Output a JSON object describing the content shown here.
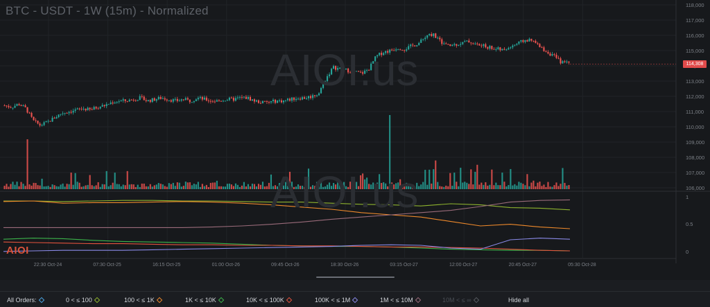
{
  "title": "BTC - USDT - 1W (15m) - Normalized",
  "watermark": "AIOI.us",
  "logo": "AIOI",
  "current_price": "114,308",
  "price_axis": [
    "118,000",
    "117,000",
    "116,000",
    "115,000",
    "114,000",
    "113,000",
    "112,000",
    "111,000",
    "110,000",
    "109,000",
    "108,000",
    "107,000",
    "106,000"
  ],
  "ratio_axis": [
    "1",
    "0.5",
    "0"
  ],
  "time_axis": [
    "22:30 Oct-24",
    "07:30 Oct-25",
    "16:15 Oct-25",
    "01:00 Oct-26",
    "09:45 Oct-26",
    "18:30 Oct-26",
    "03:15 Oct-27",
    "12:00 Oct-27",
    "20:45 Oct-27",
    "05:30 Oct-28"
  ],
  "filters": [
    {
      "label": "All Orders:",
      "color": "#4aa3e0",
      "enabled": true
    },
    {
      "label": "0 < ≤ 100",
      "color": "#8fb42e",
      "enabled": true
    },
    {
      "label": "100 < ≤ 1K",
      "color": "#f08a2b",
      "enabled": true
    },
    {
      "label": "1K < ≤ 10K",
      "color": "#3cb44b",
      "enabled": true
    },
    {
      "label": "10K < ≤ 100K",
      "color": "#e5533d",
      "enabled": true
    },
    {
      "label": "100K < ≤ 1M",
      "color": "#8a8ae8",
      "enabled": true
    },
    {
      "label": "1M < ≤ 10M",
      "color": "#9a6b7a",
      "enabled": true
    },
    {
      "label": "10M < ≤ ∞",
      "color": "#55595f",
      "enabled": false
    }
  ],
  "hide_all": "Hide all",
  "colors": {
    "up": "#26a69a",
    "down": "#ef5350",
    "bg": "#17191c"
  },
  "chart_data": {
    "type": "line",
    "price_series": [
      111.4,
      111.3,
      111.5,
      111.2,
      110.4,
      110.1,
      110.3,
      110.6,
      110.9,
      111.0,
      111.1,
      111.2,
      111.1,
      111.3,
      111.4,
      111.6,
      111.7,
      111.7,
      111.8,
      111.9,
      111.7,
      111.8,
      111.9,
      111.8,
      111.7,
      111.8,
      111.7,
      111.9,
      111.8,
      111.7,
      111.7,
      111.8,
      111.8,
      111.9,
      111.9,
      111.7,
      111.6,
      111.6,
      111.7,
      111.7,
      111.8,
      111.9,
      111.9,
      112.0,
      112.2,
      113.2,
      113.9,
      113.8,
      113.7,
      113.6,
      113.5,
      113.8,
      114.6,
      114.9,
      115.0,
      115.2,
      115.1,
      115.3,
      115.5,
      115.9,
      116.1,
      115.6,
      115.3,
      115.4,
      115.5,
      115.6,
      115.4,
      115.3,
      115.2,
      115.1,
      115.0,
      115.3,
      115.5,
      115.7,
      115.6,
      115.2,
      114.9,
      114.6,
      114.2,
      114.3
    ],
    "ylim": [
      106000,
      118000
    ],
    "ratio_series": [
      {
        "name": "0 < ≤ 100",
        "values": [
          0.95,
          0.95,
          0.94,
          0.95,
          0.96,
          0.96,
          0.95,
          0.95,
          0.94,
          0.93,
          0.93,
          0.91,
          0.89,
          0.88,
          0.86,
          0.9,
          0.88,
          0.83,
          0.82,
          0.79
        ]
      },
      {
        "name": "100 < ≤ 1K",
        "values": [
          0.94,
          0.95,
          0.91,
          0.92,
          0.92,
          0.93,
          0.94,
          0.93,
          0.91,
          0.88,
          0.84,
          0.8,
          0.74,
          0.7,
          0.66,
          0.58,
          0.5,
          0.53,
          0.48,
          0.45
        ]
      },
      {
        "name": "1K < ≤ 10K",
        "values": [
          0.26,
          0.28,
          0.27,
          0.24,
          0.22,
          0.21,
          0.2,
          0.19,
          0.17,
          0.15,
          0.14,
          0.13,
          0.13,
          0.12,
          0.1,
          0.08,
          0.07,
          0.06,
          0.06,
          0.05
        ]
      },
      {
        "name": "10K < ≤ 100K",
        "values": [
          0.21,
          0.2,
          0.19,
          0.18,
          0.18,
          0.17,
          0.16,
          0.16,
          0.15,
          0.15,
          0.14,
          0.14,
          0.13,
          0.12,
          0.12,
          0.11,
          0.1,
          0.08,
          0.06,
          0.05
        ]
      },
      {
        "name": "100K < ≤ 1M",
        "values": [
          0.04,
          0.05,
          0.06,
          0.06,
          0.06,
          0.07,
          0.08,
          0.09,
          0.1,
          0.11,
          0.12,
          0.13,
          0.15,
          0.16,
          0.15,
          0.1,
          0.08,
          0.25,
          0.28,
          0.26
        ]
      },
      {
        "name": "1M < ≤ 10M",
        "values": [
          0.47,
          0.47,
          0.47,
          0.47,
          0.47,
          0.47,
          0.47,
          0.48,
          0.5,
          0.53,
          0.57,
          0.62,
          0.66,
          0.7,
          0.74,
          0.78,
          0.85,
          0.93,
          0.96,
          0.97
        ]
      }
    ]
  }
}
